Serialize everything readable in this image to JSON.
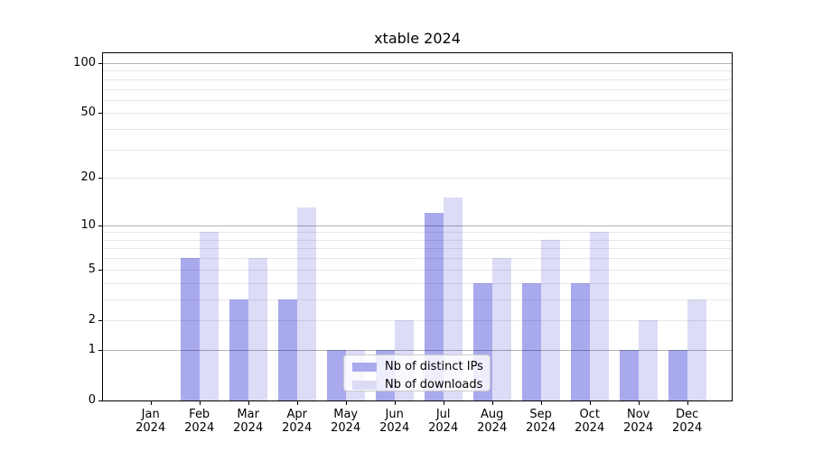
{
  "chart_data": {
    "type": "bar",
    "title": "xtable 2024",
    "categories": [
      "Jan",
      "Feb",
      "Mar",
      "Apr",
      "May",
      "Jun",
      "Jul",
      "Aug",
      "Sep",
      "Oct",
      "Nov",
      "Dec"
    ],
    "category_year_label": "2024",
    "series": [
      {
        "name": "Nb of distinct IPs",
        "color": "#a9a9ee",
        "values": [
          0,
          6,
          3,
          3,
          1,
          1,
          12,
          4,
          4,
          4,
          1,
          1
        ]
      },
      {
        "name": "Nb of downloads",
        "color": "#dcdcf7",
        "values": [
          0,
          9,
          6,
          13,
          1,
          2,
          15,
          6,
          8,
          9,
          2,
          3
        ]
      }
    ],
    "y_axis": {
      "scale": "log1p",
      "tick_labels": [
        "0",
        "1",
        "2",
        "5",
        "10",
        "20",
        "50",
        "100"
      ],
      "tick_values": [
        0,
        1,
        2,
        5,
        10,
        20,
        50,
        100
      ],
      "major_gridlines": [
        1,
        10,
        100
      ],
      "minor_gridlines": [
        2,
        3,
        4,
        5,
        6,
        7,
        8,
        9,
        20,
        30,
        40,
        50,
        60,
        70,
        80,
        90
      ],
      "top_value": 119
    },
    "x_axis": {
      "label_line2": "2024"
    },
    "legend": {
      "position": "bottom-center-left",
      "entries": [
        "Nb of distinct IPs",
        "Nb of downloads"
      ]
    },
    "grid": true,
    "colors": {
      "bar_dark": "#a9a9ee",
      "bar_light": "#dcdcf7",
      "grid_minor": "#e8e8e8",
      "grid_major": "#b5b5b5",
      "spine": "#000000",
      "background": "#ffffff"
    }
  }
}
